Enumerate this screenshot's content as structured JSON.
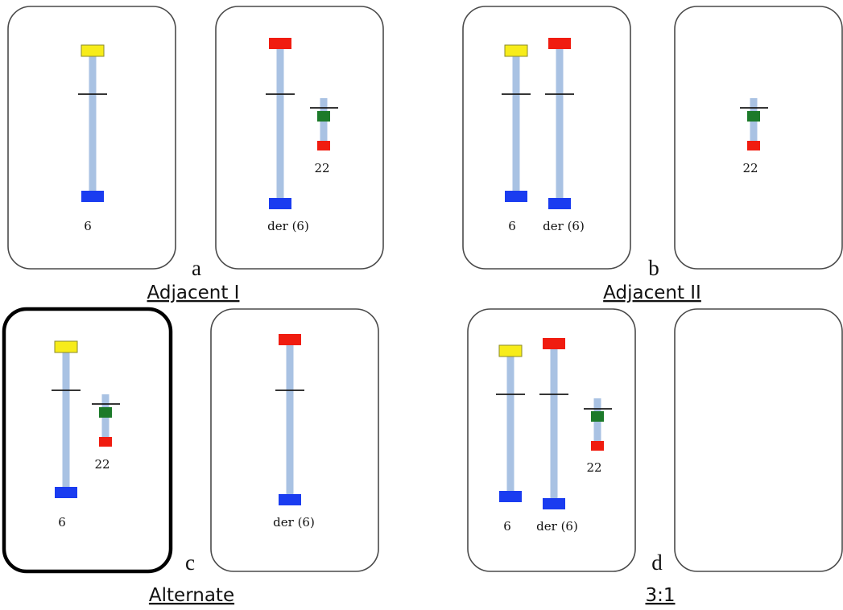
{
  "colors": {
    "yellow": "#f7ec1a",
    "red": "#f01c10",
    "blue": "#1a3cf0",
    "green": "#1c7a2a",
    "stem": "#a9c2e3"
  },
  "chromosome_labels": {
    "chr6": "6",
    "der6": "der (6)",
    "chr22": "22"
  },
  "groups": [
    {
      "letter": "a",
      "caption": "Adjacent I"
    },
    {
      "letter": "b",
      "caption": "Adjacent II"
    },
    {
      "letter": "c",
      "caption": "Alternate"
    },
    {
      "letter": "d",
      "caption": "3:1"
    }
  ]
}
